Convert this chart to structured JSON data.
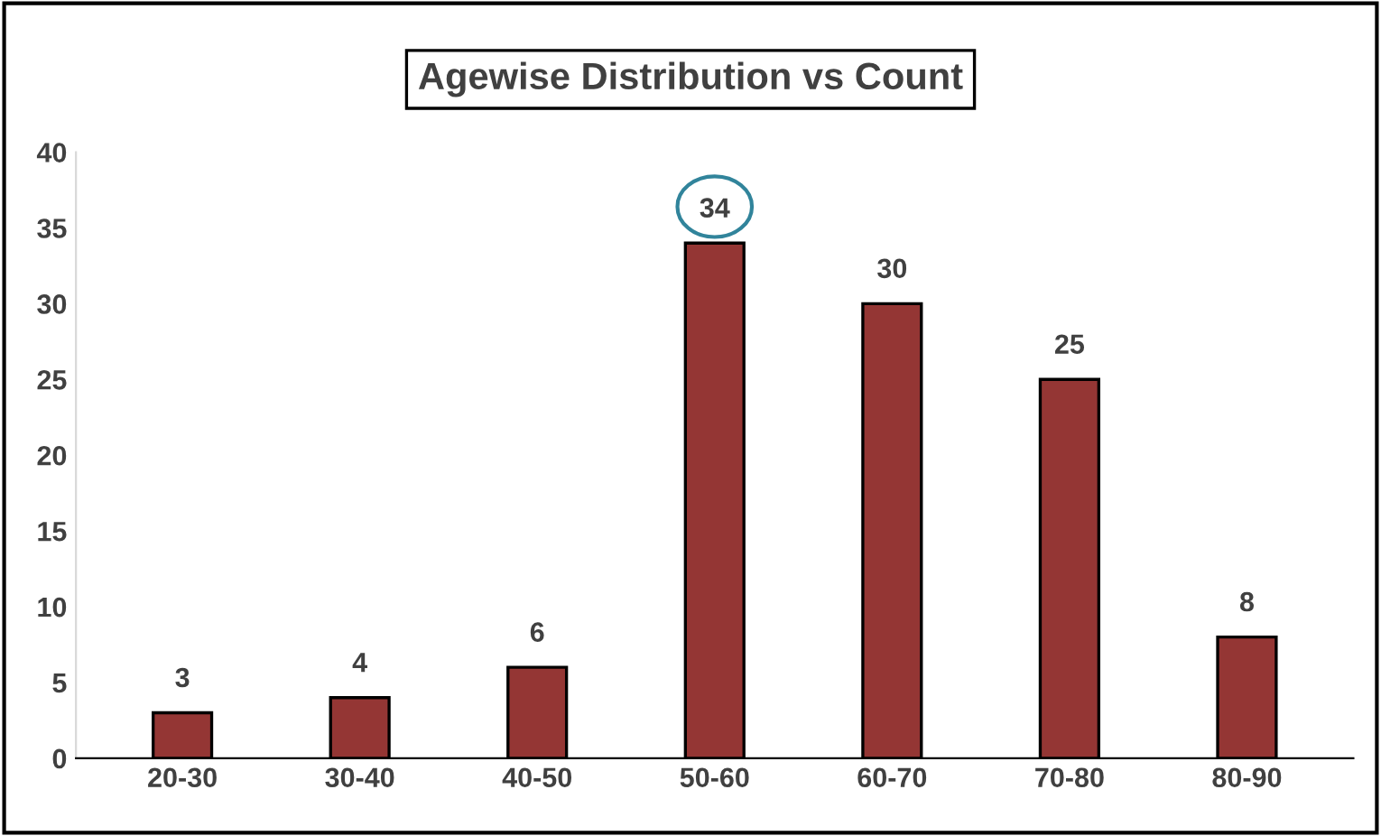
{
  "chart_data": {
    "type": "bar",
    "title": "Agewise Distribution vs Count",
    "categories": [
      "20-30",
      "30-40",
      "40-50",
      "50-60",
      "60-70",
      "70-80",
      "80-90"
    ],
    "values": [
      3,
      4,
      6,
      34,
      30,
      25,
      8
    ],
    "color": "#943634",
    "ylim": [
      0,
      40
    ],
    "yticks": [
      0,
      5,
      10,
      15,
      20,
      25,
      30,
      35,
      40
    ],
    "grid": false,
    "data_labels": true
  }
}
